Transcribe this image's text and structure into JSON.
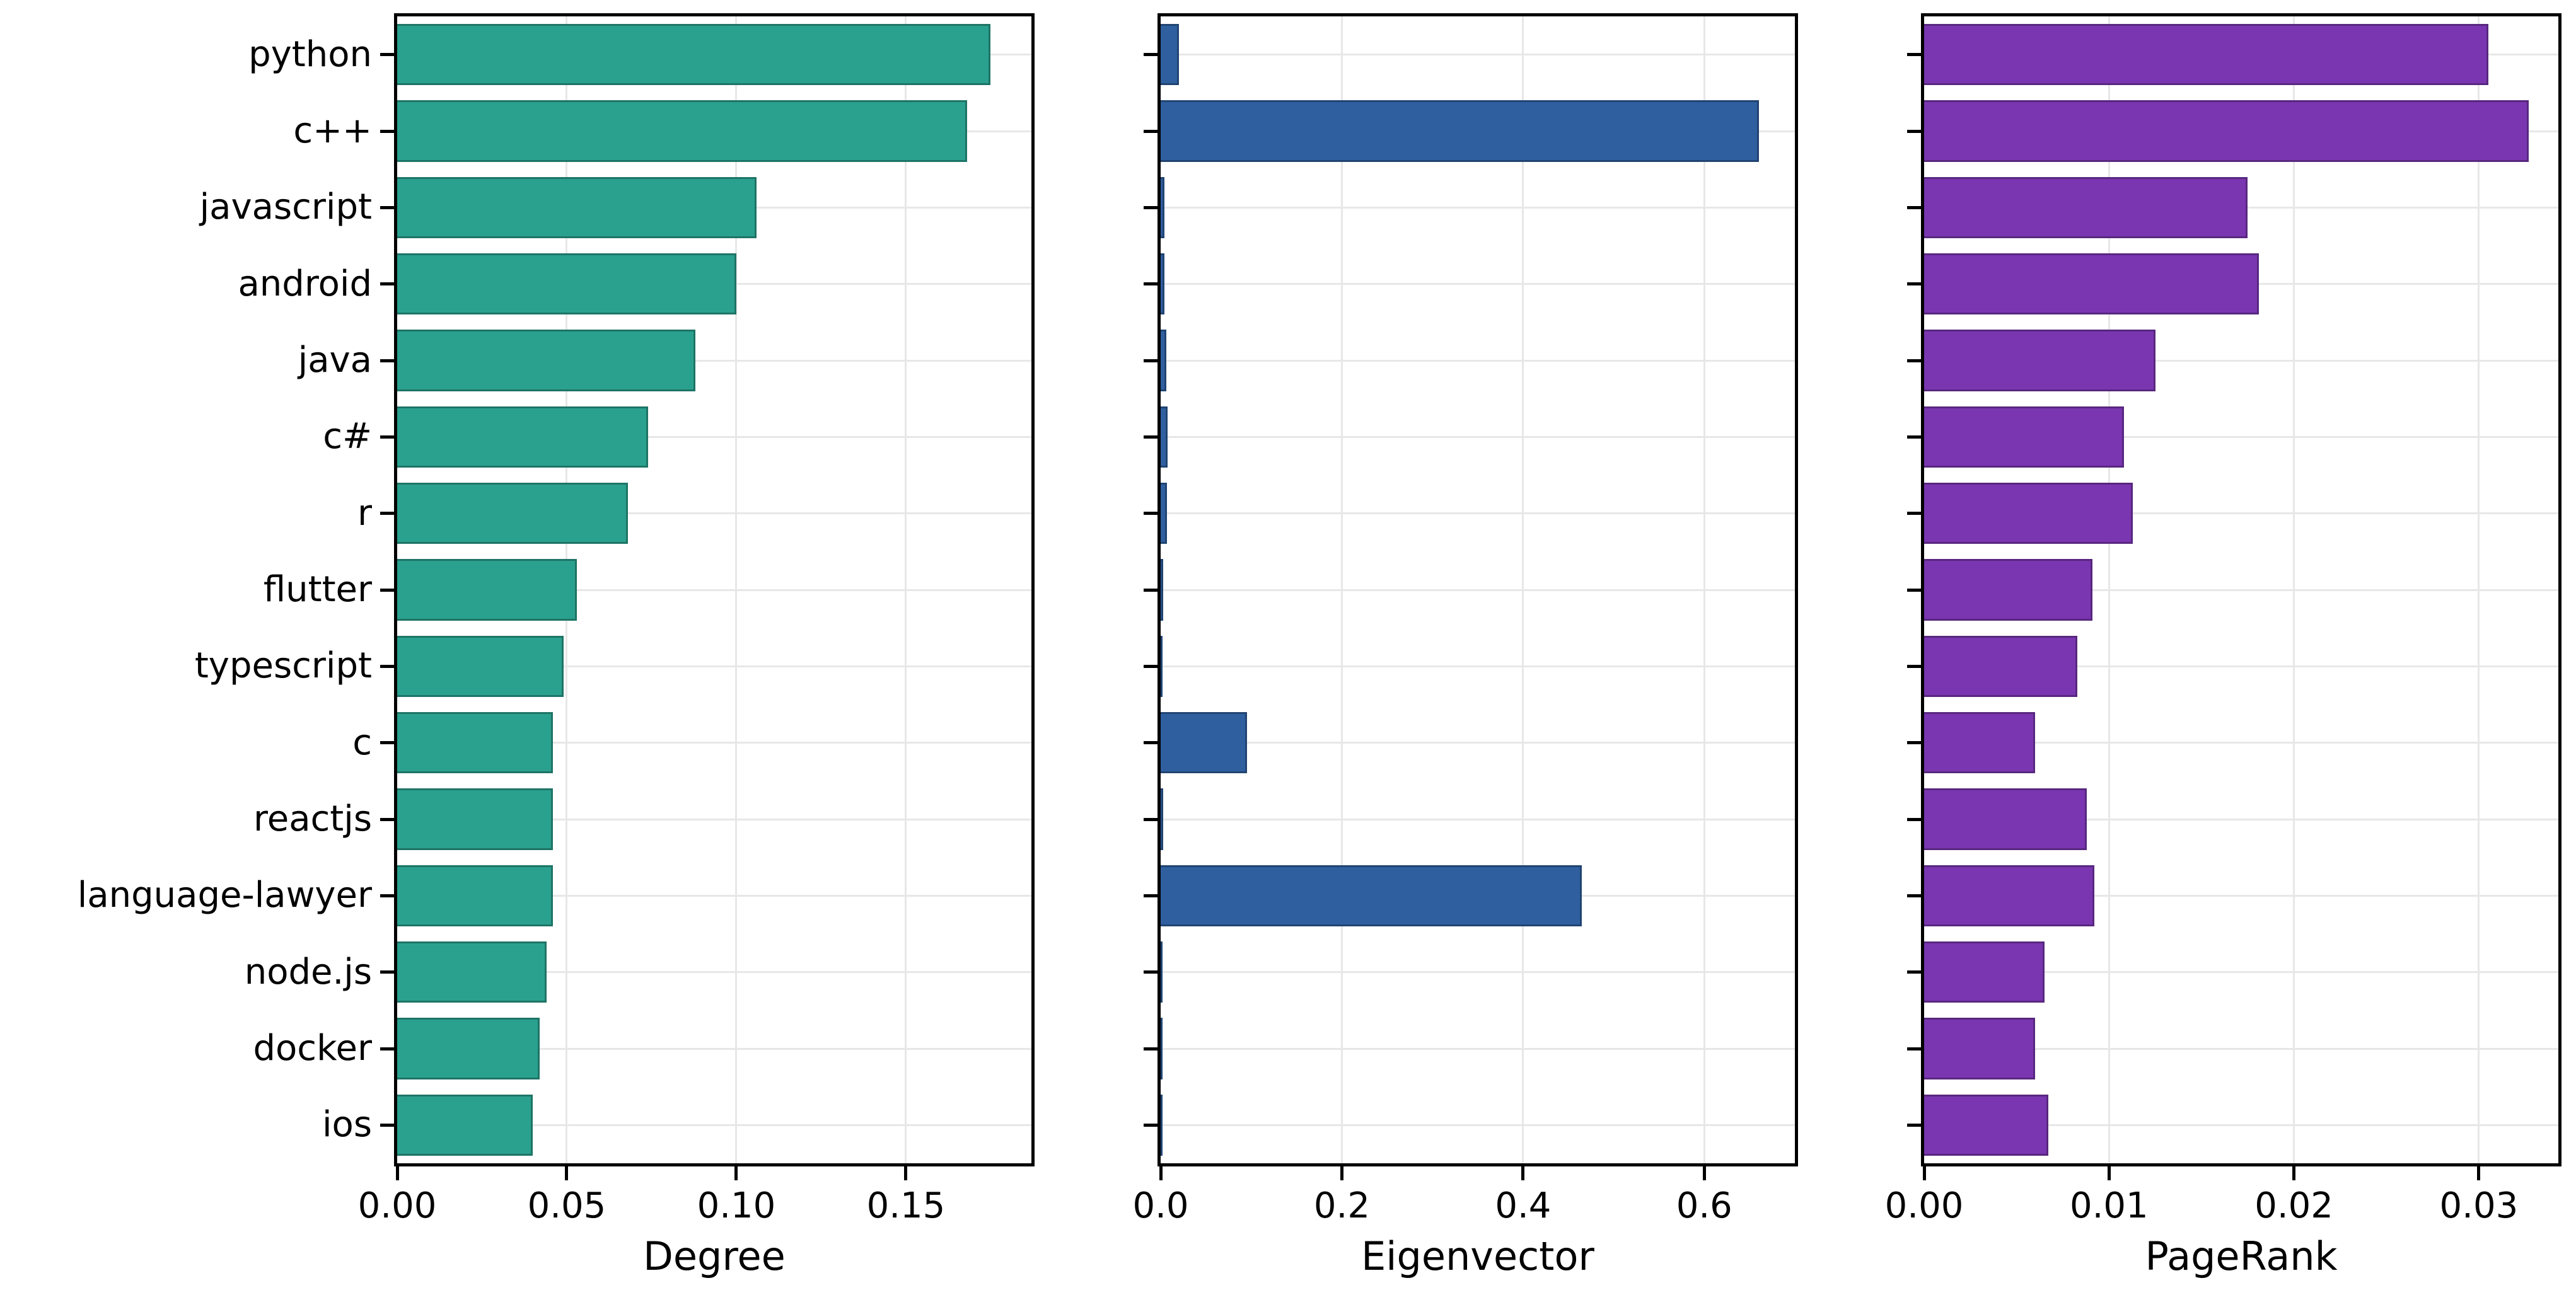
{
  "chart_data": {
    "type": "bar",
    "orientation": "horizontal",
    "grid": true,
    "legend": false,
    "background_color": "#ffffff",
    "categories": [
      "python",
      "c++",
      "javascript",
      "android",
      "java",
      "c#",
      "r",
      "flutter",
      "typescript",
      "c",
      "reactjs",
      "language-lawyer",
      "node.js",
      "docker",
      "ios"
    ],
    "charts": [
      {
        "name": "Degree",
        "xlabel": "Degree",
        "color": "#2aa18e",
        "xlim": [
          0,
          0.187
        ],
        "xtick_values": [
          0,
          0.05,
          0.1,
          0.15
        ],
        "xtick_labels": [
          "0.00",
          "0.05",
          "0.10",
          "0.15"
        ],
        "values": [
          0.175,
          0.168,
          0.106,
          0.1,
          0.088,
          0.074,
          0.068,
          0.053,
          0.049,
          0.046,
          0.046,
          0.046,
          0.044,
          0.042,
          0.04
        ]
      },
      {
        "name": "Eigenvector",
        "xlabel": "Eigenvector",
        "color": "#2f5f9f",
        "xlim": [
          0,
          0.7
        ],
        "xtick_values": [
          0,
          0.2,
          0.4,
          0.6
        ],
        "xtick_labels": [
          "0.0",
          "0.2",
          "0.4",
          "0.6"
        ],
        "values": [
          0.02,
          0.66,
          0.004,
          0.004,
          0.006,
          0.008,
          0.007,
          0.003,
          0.002,
          0.095,
          0.003,
          0.465,
          0.002,
          0.001,
          0.002
        ]
      },
      {
        "name": "PageRank",
        "xlabel": "PageRank",
        "color": "#7a36b1",
        "xlim": [
          0,
          0.0343
        ],
        "xtick_values": [
          0,
          0.01,
          0.02,
          0.03
        ],
        "xtick_labels": [
          "0.00",
          "0.01",
          "0.02",
          "0.03"
        ],
        "values": [
          0.0305,
          0.0327,
          0.0175,
          0.0181,
          0.0125,
          0.0108,
          0.0113,
          0.0091,
          0.0083,
          0.006,
          0.0088,
          0.0092,
          0.0065,
          0.006,
          0.0067
        ]
      }
    ]
  }
}
